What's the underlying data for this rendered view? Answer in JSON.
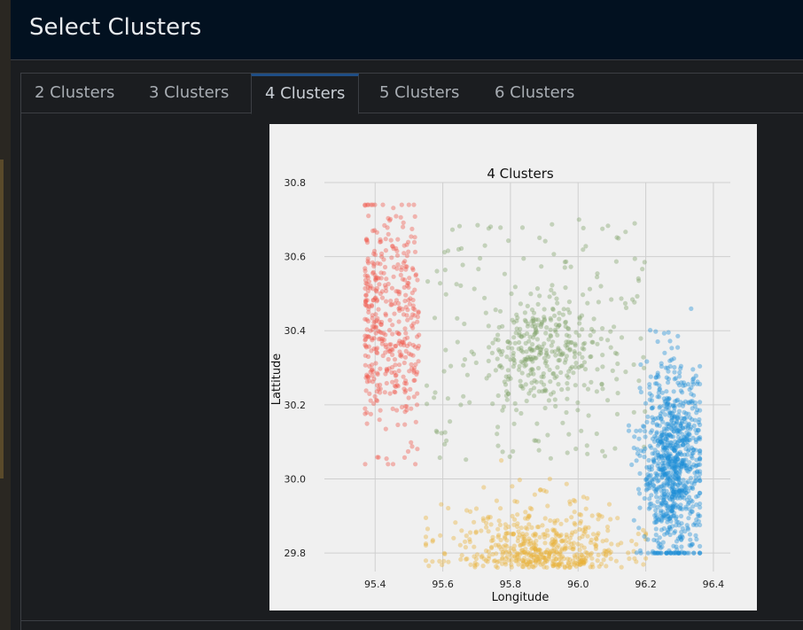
{
  "header": {
    "title": "Select Clusters"
  },
  "tabs": [
    {
      "label": "2 Clusters",
      "active": false
    },
    {
      "label": "3 Clusters",
      "active": false
    },
    {
      "label": "4 Clusters",
      "active": true
    },
    {
      "label": "5 Clusters",
      "active": false
    },
    {
      "label": "6 Clusters",
      "active": false
    }
  ],
  "colors": {
    "accent": "#1f4e86",
    "header_bg": "#021120",
    "panel_bg": "#1b1d20"
  },
  "chart_data": {
    "type": "scatter",
    "title": "4 Clusters",
    "xlabel": "Longitude",
    "ylabel": "Lattitude",
    "xlim": [
      95.25,
      96.45
    ],
    "ylim": [
      29.75,
      30.8
    ],
    "xticks": [
      "95.4",
      "95.6",
      "95.8",
      "96.0",
      "96.2",
      "96.4"
    ],
    "yticks": [
      "29.8",
      "30.0",
      "30.2",
      "30.4",
      "30.6",
      "30.8"
    ],
    "grid": true,
    "series": [
      {
        "color": "#f0584a",
        "x_range": [
          95.37,
          95.53
        ],
        "y_range": [
          30.04,
          30.74
        ],
        "center": [
          95.43,
          30.42
        ],
        "points": 420
      },
      {
        "color": "#7fa36a",
        "x_range": [
          95.55,
          96.2
        ],
        "y_range": [
          30.05,
          30.71
        ],
        "center": [
          95.9,
          30.33
        ],
        "points": 480
      },
      {
        "color": "#e8b23a",
        "x_range": [
          95.55,
          96.2
        ],
        "y_range": [
          29.75,
          30.05
        ],
        "center": [
          95.88,
          29.8
        ],
        "points": 520
      },
      {
        "color": "#1f8fd6",
        "x_range": [
          96.15,
          96.36
        ],
        "y_range": [
          29.8,
          30.46
        ],
        "center": [
          96.28,
          30.03
        ],
        "points": 900
      }
    ]
  }
}
